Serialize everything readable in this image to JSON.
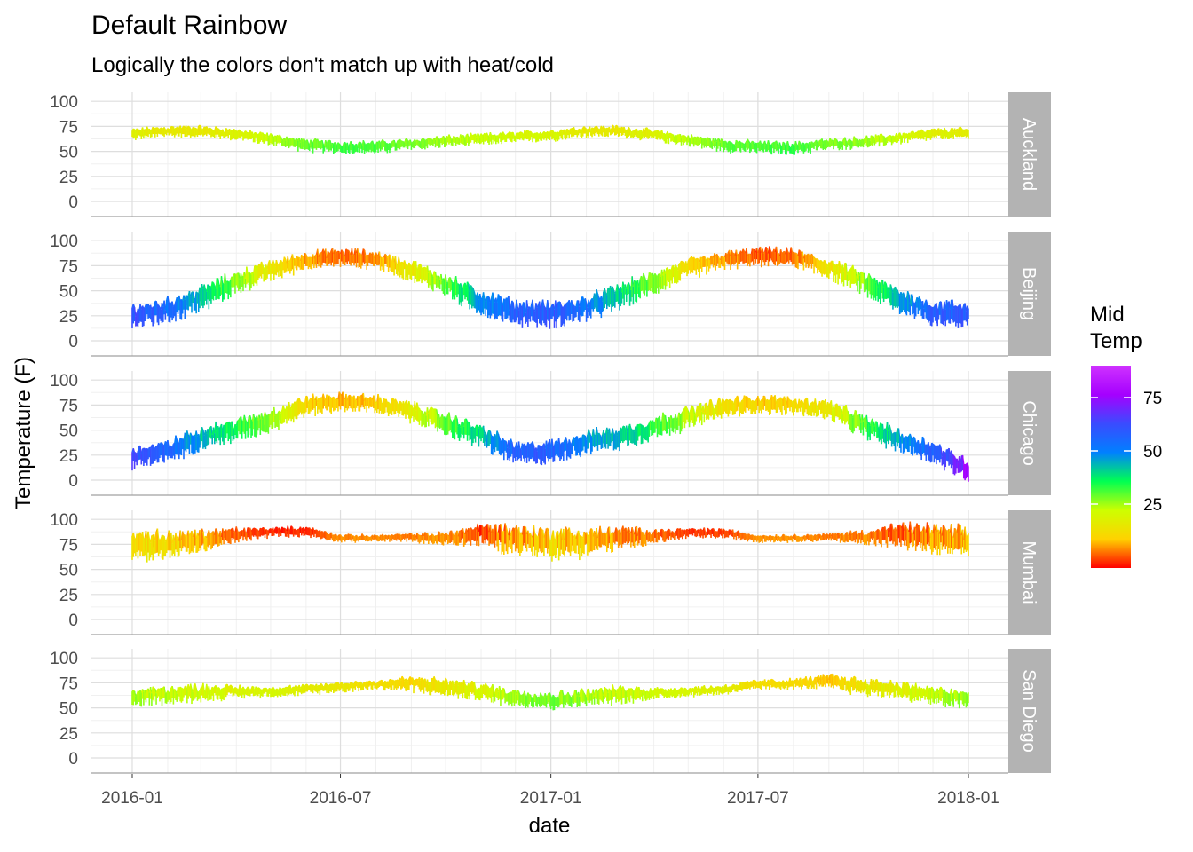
{
  "chart_data": {
    "type": "line",
    "title": "Default Rainbow",
    "subtitle": "Logically the colors don't match up with heat/cold",
    "xlabel": "date",
    "ylabel": "Temperature (F)",
    "x_ticks": [
      "2016-01",
      "2016-07",
      "2017-01",
      "2017-07",
      "2018-01"
    ],
    "xlim": [
      "2016-01-01",
      "2018-01-01"
    ],
    "y_ticks": [
      0,
      25,
      50,
      75,
      100
    ],
    "ylim": [
      0,
      100
    ],
    "facet_variable": "city",
    "grid": true,
    "legend": {
      "title_lines": [
        "Mid",
        "Temp"
      ],
      "placement": "right",
      "ticks": [
        25,
        50,
        75
      ],
      "range": [
        -5,
        90
      ],
      "colors": [
        "#ff0000",
        "#ffd200",
        "#cdff00",
        "#00ff52",
        "#0080ff",
        "#3b4bff",
        "#a500ff",
        "#cf32ff"
      ]
    },
    "series": [
      {
        "name": "Auckland",
        "x": [
          "2016-01-01",
          "2016-02-01",
          "2016-03-01",
          "2016-04-01",
          "2016-05-01",
          "2016-06-01",
          "2016-07-01",
          "2016-08-01",
          "2016-09-01",
          "2016-10-01",
          "2016-11-01",
          "2016-12-01",
          "2017-01-01",
          "2017-02-01",
          "2017-03-01",
          "2017-04-01",
          "2017-05-01",
          "2017-06-01",
          "2017-07-01",
          "2017-08-01",
          "2017-09-01",
          "2017-10-01",
          "2017-11-01",
          "2017-12-01",
          "2018-01-01"
        ],
        "mid": [
          67,
          70,
          70,
          67,
          62,
          56,
          54,
          54,
          57,
          60,
          62,
          64,
          66,
          70,
          70,
          66,
          61,
          56,
          54,
          53,
          57,
          59,
          63,
          67,
          68
        ],
        "spread": [
          9,
          9,
          9,
          9,
          9,
          10,
          10,
          10,
          9,
          9,
          9,
          9,
          9,
          9,
          9,
          9,
          9,
          10,
          10,
          10,
          9,
          9,
          9,
          9,
          9
        ]
      },
      {
        "name": "Beijing",
        "x": [
          "2016-01-01",
          "2016-02-01",
          "2016-03-01",
          "2016-04-01",
          "2016-05-01",
          "2016-06-01",
          "2016-07-01",
          "2016-08-01",
          "2016-09-01",
          "2016-10-01",
          "2016-11-01",
          "2016-12-01",
          "2017-01-01",
          "2017-02-01",
          "2017-03-01",
          "2017-04-01",
          "2017-05-01",
          "2017-06-01",
          "2017-07-01",
          "2017-08-01",
          "2017-09-01",
          "2017-10-01",
          "2017-11-01",
          "2017-12-01",
          "2018-01-01"
        ],
        "mid": [
          24,
          30,
          42,
          58,
          70,
          80,
          83,
          81,
          70,
          56,
          38,
          28,
          26,
          32,
          44,
          58,
          72,
          80,
          84,
          83,
          72,
          58,
          40,
          28,
          26
        ],
        "spread": [
          20,
          20,
          20,
          18,
          16,
          14,
          14,
          14,
          16,
          18,
          20,
          20,
          20,
          20,
          20,
          18,
          16,
          14,
          14,
          14,
          16,
          18,
          20,
          20,
          20
        ]
      },
      {
        "name": "Chicago",
        "x": [
          "2016-01-01",
          "2016-02-01",
          "2016-03-01",
          "2016-04-01",
          "2016-05-01",
          "2016-06-01",
          "2016-07-01",
          "2016-08-01",
          "2016-09-01",
          "2016-10-01",
          "2016-11-01",
          "2016-12-01",
          "2017-01-01",
          "2017-02-01",
          "2017-03-01",
          "2017-04-01",
          "2017-05-01",
          "2017-06-01",
          "2017-07-01",
          "2017-08-01",
          "2017-09-01",
          "2017-10-01",
          "2017-11-01",
          "2017-12-01",
          "2018-01-01"
        ],
        "mid": [
          22,
          28,
          42,
          50,
          60,
          74,
          78,
          76,
          68,
          56,
          44,
          26,
          28,
          38,
          42,
          52,
          62,
          72,
          76,
          74,
          70,
          54,
          40,
          28,
          10
        ],
        "spread": [
          18,
          18,
          18,
          18,
          18,
          16,
          14,
          14,
          16,
          18,
          18,
          18,
          18,
          18,
          18,
          18,
          18,
          16,
          14,
          14,
          16,
          18,
          18,
          18,
          18
        ]
      },
      {
        "name": "Mumbai",
        "x": [
          "2016-01-01",
          "2016-02-01",
          "2016-03-01",
          "2016-04-01",
          "2016-05-01",
          "2016-06-01",
          "2016-07-01",
          "2016-08-01",
          "2016-09-01",
          "2016-10-01",
          "2016-11-01",
          "2016-12-01",
          "2017-01-01",
          "2017-02-01",
          "2017-03-01",
          "2017-04-01",
          "2017-05-01",
          "2017-06-01",
          "2017-07-01",
          "2017-08-01",
          "2017-09-01",
          "2017-10-01",
          "2017-11-01",
          "2017-12-01",
          "2018-01-01"
        ],
        "mid": [
          75,
          74,
          78,
          84,
          87,
          88,
          81,
          81,
          82,
          80,
          85,
          80,
          76,
          77,
          81,
          83,
          86,
          86,
          81,
          81,
          82,
          82,
          84,
          80,
          76
        ],
        "spread": [
          24,
          22,
          18,
          12,
          8,
          8,
          6,
          6,
          6,
          12,
          18,
          24,
          24,
          22,
          18,
          12,
          8,
          8,
          6,
          6,
          6,
          12,
          18,
          24,
          24
        ]
      },
      {
        "name": "San Diego",
        "x": [
          "2016-01-01",
          "2016-02-01",
          "2016-03-01",
          "2016-04-01",
          "2016-05-01",
          "2016-06-01",
          "2016-07-01",
          "2016-08-01",
          "2016-09-01",
          "2016-10-01",
          "2016-11-01",
          "2016-12-01",
          "2017-01-01",
          "2017-02-01",
          "2017-03-01",
          "2017-04-01",
          "2017-05-01",
          "2017-06-01",
          "2017-07-01",
          "2017-08-01",
          "2017-09-01",
          "2017-10-01",
          "2017-11-01",
          "2017-12-01",
          "2018-01-01"
        ],
        "mid": [
          60,
          63,
          65,
          66,
          66,
          68,
          71,
          73,
          74,
          70,
          66,
          60,
          57,
          60,
          63,
          64,
          66,
          68,
          73,
          74,
          76,
          71,
          68,
          62,
          58
        ],
        "spread": [
          14,
          14,
          14,
          10,
          8,
          8,
          8,
          8,
          12,
          14,
          14,
          14,
          14,
          14,
          14,
          10,
          8,
          8,
          8,
          8,
          12,
          14,
          14,
          14,
          14
        ]
      }
    ]
  }
}
